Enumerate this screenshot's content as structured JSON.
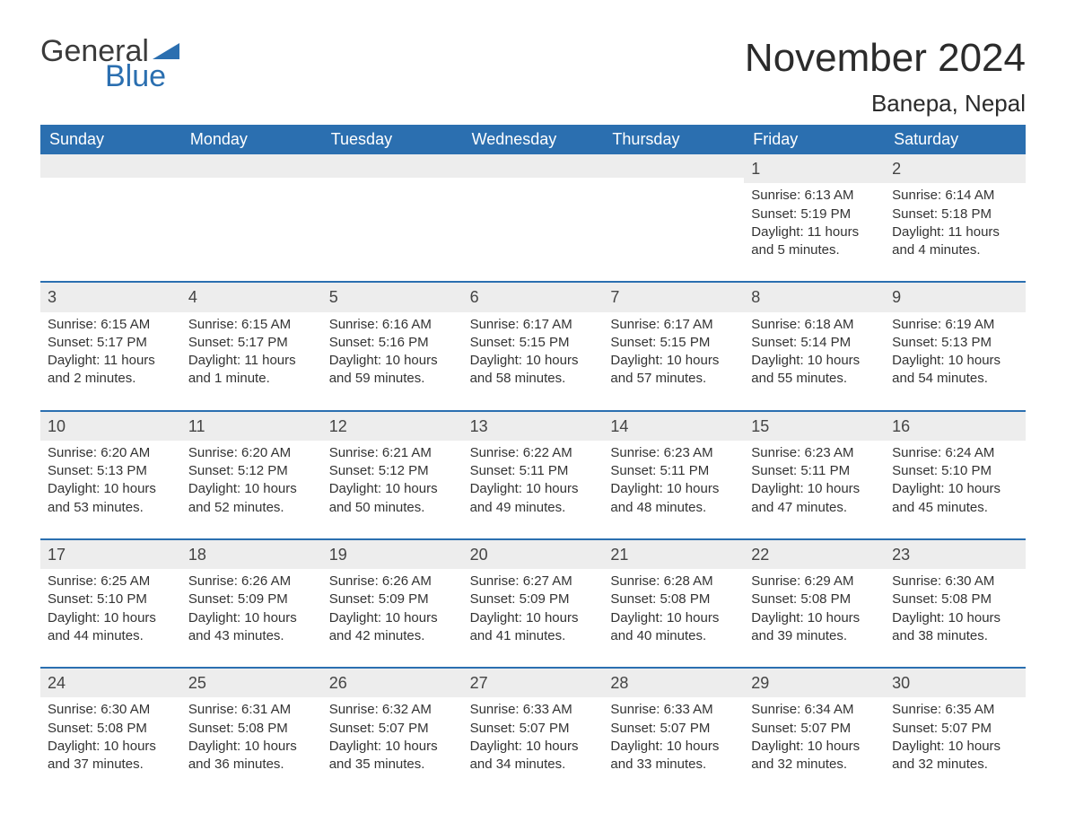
{
  "logo": {
    "text1": "General",
    "text2": "Blue",
    "flag_color": "#2b6fb0"
  },
  "title": "November 2024",
  "location": "Banepa, Nepal",
  "colors": {
    "header_bg": "#2b6fb0",
    "header_text": "#ffffff",
    "row_divider": "#2b6fb0",
    "daynum_bg": "#ededed",
    "body_text": "#333333",
    "background": "#ffffff"
  },
  "typography": {
    "title_fontsize": 44,
    "location_fontsize": 26,
    "dayhead_fontsize": 18,
    "daynum_fontsize": 18,
    "body_fontsize": 15
  },
  "day_headers": [
    "Sunday",
    "Monday",
    "Tuesday",
    "Wednesday",
    "Thursday",
    "Friday",
    "Saturday"
  ],
  "weeks": [
    [
      {
        "empty": true
      },
      {
        "empty": true
      },
      {
        "empty": true
      },
      {
        "empty": true
      },
      {
        "empty": true
      },
      {
        "day": "1",
        "sunrise": "Sunrise: 6:13 AM",
        "sunset": "Sunset: 5:19 PM",
        "daylight1": "Daylight: 11 hours",
        "daylight2": "and 5 minutes."
      },
      {
        "day": "2",
        "sunrise": "Sunrise: 6:14 AM",
        "sunset": "Sunset: 5:18 PM",
        "daylight1": "Daylight: 11 hours",
        "daylight2": "and 4 minutes."
      }
    ],
    [
      {
        "day": "3",
        "sunrise": "Sunrise: 6:15 AM",
        "sunset": "Sunset: 5:17 PM",
        "daylight1": "Daylight: 11 hours",
        "daylight2": "and 2 minutes."
      },
      {
        "day": "4",
        "sunrise": "Sunrise: 6:15 AM",
        "sunset": "Sunset: 5:17 PM",
        "daylight1": "Daylight: 11 hours",
        "daylight2": "and 1 minute."
      },
      {
        "day": "5",
        "sunrise": "Sunrise: 6:16 AM",
        "sunset": "Sunset: 5:16 PM",
        "daylight1": "Daylight: 10 hours",
        "daylight2": "and 59 minutes."
      },
      {
        "day": "6",
        "sunrise": "Sunrise: 6:17 AM",
        "sunset": "Sunset: 5:15 PM",
        "daylight1": "Daylight: 10 hours",
        "daylight2": "and 58 minutes."
      },
      {
        "day": "7",
        "sunrise": "Sunrise: 6:17 AM",
        "sunset": "Sunset: 5:15 PM",
        "daylight1": "Daylight: 10 hours",
        "daylight2": "and 57 minutes."
      },
      {
        "day": "8",
        "sunrise": "Sunrise: 6:18 AM",
        "sunset": "Sunset: 5:14 PM",
        "daylight1": "Daylight: 10 hours",
        "daylight2": "and 55 minutes."
      },
      {
        "day": "9",
        "sunrise": "Sunrise: 6:19 AM",
        "sunset": "Sunset: 5:13 PM",
        "daylight1": "Daylight: 10 hours",
        "daylight2": "and 54 minutes."
      }
    ],
    [
      {
        "day": "10",
        "sunrise": "Sunrise: 6:20 AM",
        "sunset": "Sunset: 5:13 PM",
        "daylight1": "Daylight: 10 hours",
        "daylight2": "and 53 minutes."
      },
      {
        "day": "11",
        "sunrise": "Sunrise: 6:20 AM",
        "sunset": "Sunset: 5:12 PM",
        "daylight1": "Daylight: 10 hours",
        "daylight2": "and 52 minutes."
      },
      {
        "day": "12",
        "sunrise": "Sunrise: 6:21 AM",
        "sunset": "Sunset: 5:12 PM",
        "daylight1": "Daylight: 10 hours",
        "daylight2": "and 50 minutes."
      },
      {
        "day": "13",
        "sunrise": "Sunrise: 6:22 AM",
        "sunset": "Sunset: 5:11 PM",
        "daylight1": "Daylight: 10 hours",
        "daylight2": "and 49 minutes."
      },
      {
        "day": "14",
        "sunrise": "Sunrise: 6:23 AM",
        "sunset": "Sunset: 5:11 PM",
        "daylight1": "Daylight: 10 hours",
        "daylight2": "and 48 minutes."
      },
      {
        "day": "15",
        "sunrise": "Sunrise: 6:23 AM",
        "sunset": "Sunset: 5:11 PM",
        "daylight1": "Daylight: 10 hours",
        "daylight2": "and 47 minutes."
      },
      {
        "day": "16",
        "sunrise": "Sunrise: 6:24 AM",
        "sunset": "Sunset: 5:10 PM",
        "daylight1": "Daylight: 10 hours",
        "daylight2": "and 45 minutes."
      }
    ],
    [
      {
        "day": "17",
        "sunrise": "Sunrise: 6:25 AM",
        "sunset": "Sunset: 5:10 PM",
        "daylight1": "Daylight: 10 hours",
        "daylight2": "and 44 minutes."
      },
      {
        "day": "18",
        "sunrise": "Sunrise: 6:26 AM",
        "sunset": "Sunset: 5:09 PM",
        "daylight1": "Daylight: 10 hours",
        "daylight2": "and 43 minutes."
      },
      {
        "day": "19",
        "sunrise": "Sunrise: 6:26 AM",
        "sunset": "Sunset: 5:09 PM",
        "daylight1": "Daylight: 10 hours",
        "daylight2": "and 42 minutes."
      },
      {
        "day": "20",
        "sunrise": "Sunrise: 6:27 AM",
        "sunset": "Sunset: 5:09 PM",
        "daylight1": "Daylight: 10 hours",
        "daylight2": "and 41 minutes."
      },
      {
        "day": "21",
        "sunrise": "Sunrise: 6:28 AM",
        "sunset": "Sunset: 5:08 PM",
        "daylight1": "Daylight: 10 hours",
        "daylight2": "and 40 minutes."
      },
      {
        "day": "22",
        "sunrise": "Sunrise: 6:29 AM",
        "sunset": "Sunset: 5:08 PM",
        "daylight1": "Daylight: 10 hours",
        "daylight2": "and 39 minutes."
      },
      {
        "day": "23",
        "sunrise": "Sunrise: 6:30 AM",
        "sunset": "Sunset: 5:08 PM",
        "daylight1": "Daylight: 10 hours",
        "daylight2": "and 38 minutes."
      }
    ],
    [
      {
        "day": "24",
        "sunrise": "Sunrise: 6:30 AM",
        "sunset": "Sunset: 5:08 PM",
        "daylight1": "Daylight: 10 hours",
        "daylight2": "and 37 minutes."
      },
      {
        "day": "25",
        "sunrise": "Sunrise: 6:31 AM",
        "sunset": "Sunset: 5:08 PM",
        "daylight1": "Daylight: 10 hours",
        "daylight2": "and 36 minutes."
      },
      {
        "day": "26",
        "sunrise": "Sunrise: 6:32 AM",
        "sunset": "Sunset: 5:07 PM",
        "daylight1": "Daylight: 10 hours",
        "daylight2": "and 35 minutes."
      },
      {
        "day": "27",
        "sunrise": "Sunrise: 6:33 AM",
        "sunset": "Sunset: 5:07 PM",
        "daylight1": "Daylight: 10 hours",
        "daylight2": "and 34 minutes."
      },
      {
        "day": "28",
        "sunrise": "Sunrise: 6:33 AM",
        "sunset": "Sunset: 5:07 PM",
        "daylight1": "Daylight: 10 hours",
        "daylight2": "and 33 minutes."
      },
      {
        "day": "29",
        "sunrise": "Sunrise: 6:34 AM",
        "sunset": "Sunset: 5:07 PM",
        "daylight1": "Daylight: 10 hours",
        "daylight2": "and 32 minutes."
      },
      {
        "day": "30",
        "sunrise": "Sunrise: 6:35 AM",
        "sunset": "Sunset: 5:07 PM",
        "daylight1": "Daylight: 10 hours",
        "daylight2": "and 32 minutes."
      }
    ]
  ]
}
